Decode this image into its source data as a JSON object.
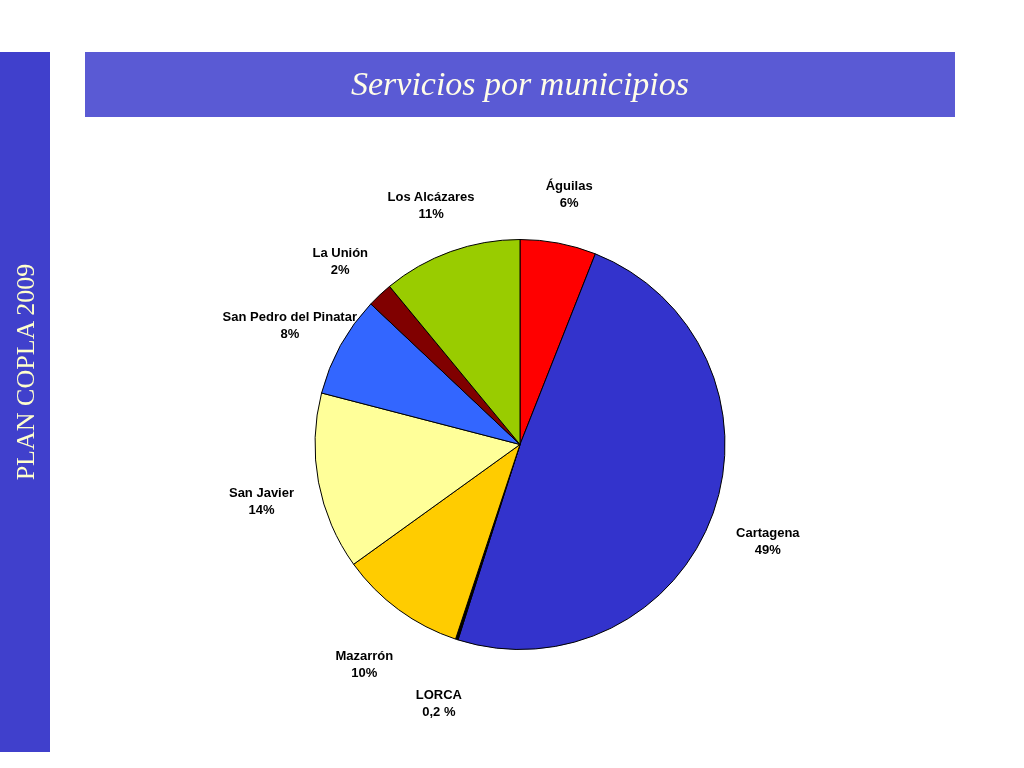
{
  "chart_data": {
    "type": "pie",
    "title": "Servicios por municipios",
    "categories": [
      "Águilas",
      "Cartagena",
      "LORCA",
      "Mazarrón",
      "San Javier",
      "San Pedro del Pinatar",
      "La Unión",
      "Los Alcázares"
    ],
    "values": [
      6,
      49,
      0.2,
      10,
      14,
      8,
      2,
      11
    ],
    "colors": [
      "#ff0000",
      "#3333cc",
      "#000000",
      "#ffcc00",
      "#ffff99",
      "#3366ff",
      "#800000",
      "#99cc00"
    ],
    "value_labels": [
      "6%",
      "49%",
      "0,2 %",
      "10%",
      "14%",
      "8%",
      "2%",
      "11%"
    ],
    "annotations": [
      "PLAN COPLA 2009"
    ]
  }
}
